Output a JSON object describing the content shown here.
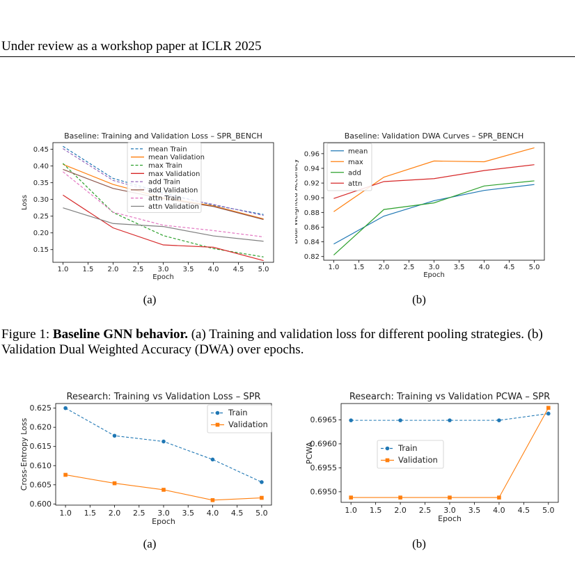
{
  "header": "Under review as a workshop paper at ICLR 2025",
  "figure1": {
    "caption_label": "Figure 1:",
    "caption_bold": "Baseline GNN behavior.",
    "caption_rest": " (a) Training and validation loss for different pooling strategies. (b) Validation Dual Weighted Accuracy (DWA) over epochs.",
    "sub_a": "(a)",
    "sub_b": "(b)"
  },
  "figure2": {
    "sub_a": "(a)",
    "sub_b": "(b)"
  },
  "chart_data": [
    {
      "id": "c1",
      "type": "line",
      "title": "Baseline: Training and Validation Loss – SPR_BENCH",
      "xlabel": "Epoch",
      "ylabel": "Loss",
      "x": [
        1,
        2,
        3,
        4,
        5
      ],
      "xlim": [
        0.8,
        5.2
      ],
      "ylim": [
        0.112,
        0.47
      ],
      "xticks": [
        1.0,
        1.5,
        2.0,
        2.5,
        3.0,
        3.5,
        4.0,
        4.5,
        5.0
      ],
      "yticks": [
        0.15,
        0.2,
        0.25,
        0.3,
        0.35,
        0.4,
        0.45
      ],
      "xtick_labels": [
        "1.0",
        "1.5",
        "2.0",
        "2.5",
        "3.0",
        "3.5",
        "4.0",
        "4.5",
        "5.0"
      ],
      "ytick_labels": [
        "0.15",
        "0.20",
        "0.25",
        "0.30",
        "0.35",
        "0.40",
        "0.45"
      ],
      "grid": false,
      "legend": "upper-center",
      "series": [
        {
          "name": "mean Train",
          "color": "#1f77b4",
          "dash": true,
          "values": [
            0.459,
            0.363,
            0.32,
            0.283,
            0.255
          ]
        },
        {
          "name": "mean Validation",
          "color": "#ff7f0e",
          "dash": false,
          "values": [
            0.405,
            0.345,
            0.305,
            0.281,
            0.242
          ]
        },
        {
          "name": "max Train",
          "color": "#2ca02c",
          "dash": true,
          "values": [
            0.408,
            0.261,
            0.192,
            0.153,
            0.128
          ]
        },
        {
          "name": "max Validation",
          "color": "#d62728",
          "dash": false,
          "values": [
            0.313,
            0.215,
            0.164,
            0.157,
            0.117
          ]
        },
        {
          "name": "add Train",
          "color": "#9467bd",
          "dash": true,
          "values": [
            0.452,
            0.357,
            0.315,
            0.285,
            0.252
          ]
        },
        {
          "name": "add Validation",
          "color": "#8c564b",
          "dash": false,
          "values": [
            0.39,
            0.333,
            0.302,
            0.279,
            0.24
          ]
        },
        {
          "name": "attn Train",
          "color": "#e377c2",
          "dash": true,
          "values": [
            0.383,
            0.262,
            0.223,
            0.207,
            0.188
          ]
        },
        {
          "name": "attn Validation",
          "color": "#7f7f7f",
          "dash": false,
          "values": [
            0.275,
            0.228,
            0.219,
            0.191,
            0.175
          ]
        }
      ]
    },
    {
      "id": "c2",
      "type": "line",
      "title": "Baseline: Validation DWA Curves – SPR_BENCH",
      "xlabel": "Epoch",
      "ylabel": "Dual Weighted Accuracy",
      "x": [
        1,
        2,
        3,
        4,
        5
      ],
      "xlim": [
        0.8,
        5.2
      ],
      "ylim": [
        0.815,
        0.975
      ],
      "xticks": [
        1.0,
        1.5,
        2.0,
        2.5,
        3.0,
        3.5,
        4.0,
        4.5,
        5.0
      ],
      "yticks": [
        0.82,
        0.84,
        0.86,
        0.88,
        0.9,
        0.92,
        0.94,
        0.96
      ],
      "xtick_labels": [
        "1.0",
        "1.5",
        "2.0",
        "2.5",
        "3.0",
        "3.5",
        "4.0",
        "4.5",
        "5.0"
      ],
      "ytick_labels": [
        "0.82",
        "0.84",
        "0.86",
        "0.88",
        "0.90",
        "0.92",
        "0.94",
        "0.96"
      ],
      "grid": false,
      "legend": "upper-left",
      "series": [
        {
          "name": "mean",
          "color": "#1f77b4",
          "dash": false,
          "values": [
            0.837,
            0.875,
            0.896,
            0.91,
            0.918
          ]
        },
        {
          "name": "max",
          "color": "#ff7f0e",
          "dash": false,
          "values": [
            0.881,
            0.928,
            0.95,
            0.949,
            0.968
          ]
        },
        {
          "name": "add",
          "color": "#2ca02c",
          "dash": false,
          "values": [
            0.822,
            0.884,
            0.893,
            0.916,
            0.923
          ]
        },
        {
          "name": "attn",
          "color": "#d62728",
          "dash": false,
          "values": [
            0.899,
            0.922,
            0.926,
            0.937,
            0.945
          ]
        }
      ]
    },
    {
      "id": "c3",
      "type": "line",
      "title": "Research: Training vs Validation Loss – SPR",
      "xlabel": "Epoch",
      "ylabel": "Cross-Entropy Loss",
      "x": [
        1,
        2,
        3,
        4,
        5
      ],
      "xlim": [
        0.8,
        5.2
      ],
      "ylim": [
        0.5997,
        0.6262
      ],
      "xticks": [
        1.0,
        1.5,
        2.0,
        2.5,
        3.0,
        3.5,
        4.0,
        4.5,
        5.0
      ],
      "yticks": [
        0.6,
        0.605,
        0.61,
        0.615,
        0.62,
        0.625
      ],
      "xtick_labels": [
        "1.0",
        "1.5",
        "2.0",
        "2.5",
        "3.0",
        "3.5",
        "4.0",
        "4.5",
        "5.0"
      ],
      "ytick_labels": [
        "0.600",
        "0.605",
        "0.610",
        "0.615",
        "0.620",
        "0.625"
      ],
      "grid": false,
      "legend": "upper-right",
      "series": [
        {
          "name": "Train",
          "color": "#1f77b4",
          "dash": true,
          "marker": "circle",
          "values": [
            0.625,
            0.6178,
            0.6163,
            0.6116,
            0.6057
          ]
        },
        {
          "name": "Validation",
          "color": "#ff7f0e",
          "dash": false,
          "marker": "square",
          "values": [
            0.6076,
            0.6054,
            0.6037,
            0.601,
            0.6016
          ]
        }
      ]
    },
    {
      "id": "c4",
      "type": "line",
      "title": "Research: Training vs Validation PCWA – SPR",
      "xlabel": "Epoch",
      "ylabel": "PCWA",
      "x": [
        1,
        2,
        3,
        4,
        5
      ],
      "xlim": [
        0.8,
        5.2
      ],
      "ylim": [
        0.69478,
        0.69684
      ],
      "xticks": [
        1.0,
        1.5,
        2.0,
        2.5,
        3.0,
        3.5,
        4.0,
        4.5,
        5.0
      ],
      "yticks": [
        0.695,
        0.6955,
        0.696,
        0.6965
      ],
      "xtick_labels": [
        "1.0",
        "1.5",
        "2.0",
        "2.5",
        "3.0",
        "3.5",
        "4.0",
        "4.5",
        "5.0"
      ],
      "ytick_labels": [
        "0.6950",
        "0.6955",
        "0.6960",
        "0.6965"
      ],
      "grid": false,
      "legend": "center-left",
      "series": [
        {
          "name": "Train",
          "color": "#1f77b4",
          "dash": true,
          "marker": "circle",
          "values": [
            0.69649,
            0.69649,
            0.69649,
            0.69649,
            0.69663
          ]
        },
        {
          "name": "Validation",
          "color": "#ff7f0e",
          "dash": false,
          "marker": "square",
          "values": [
            0.69488,
            0.69488,
            0.69488,
            0.69488,
            0.69675
          ]
        }
      ]
    }
  ]
}
